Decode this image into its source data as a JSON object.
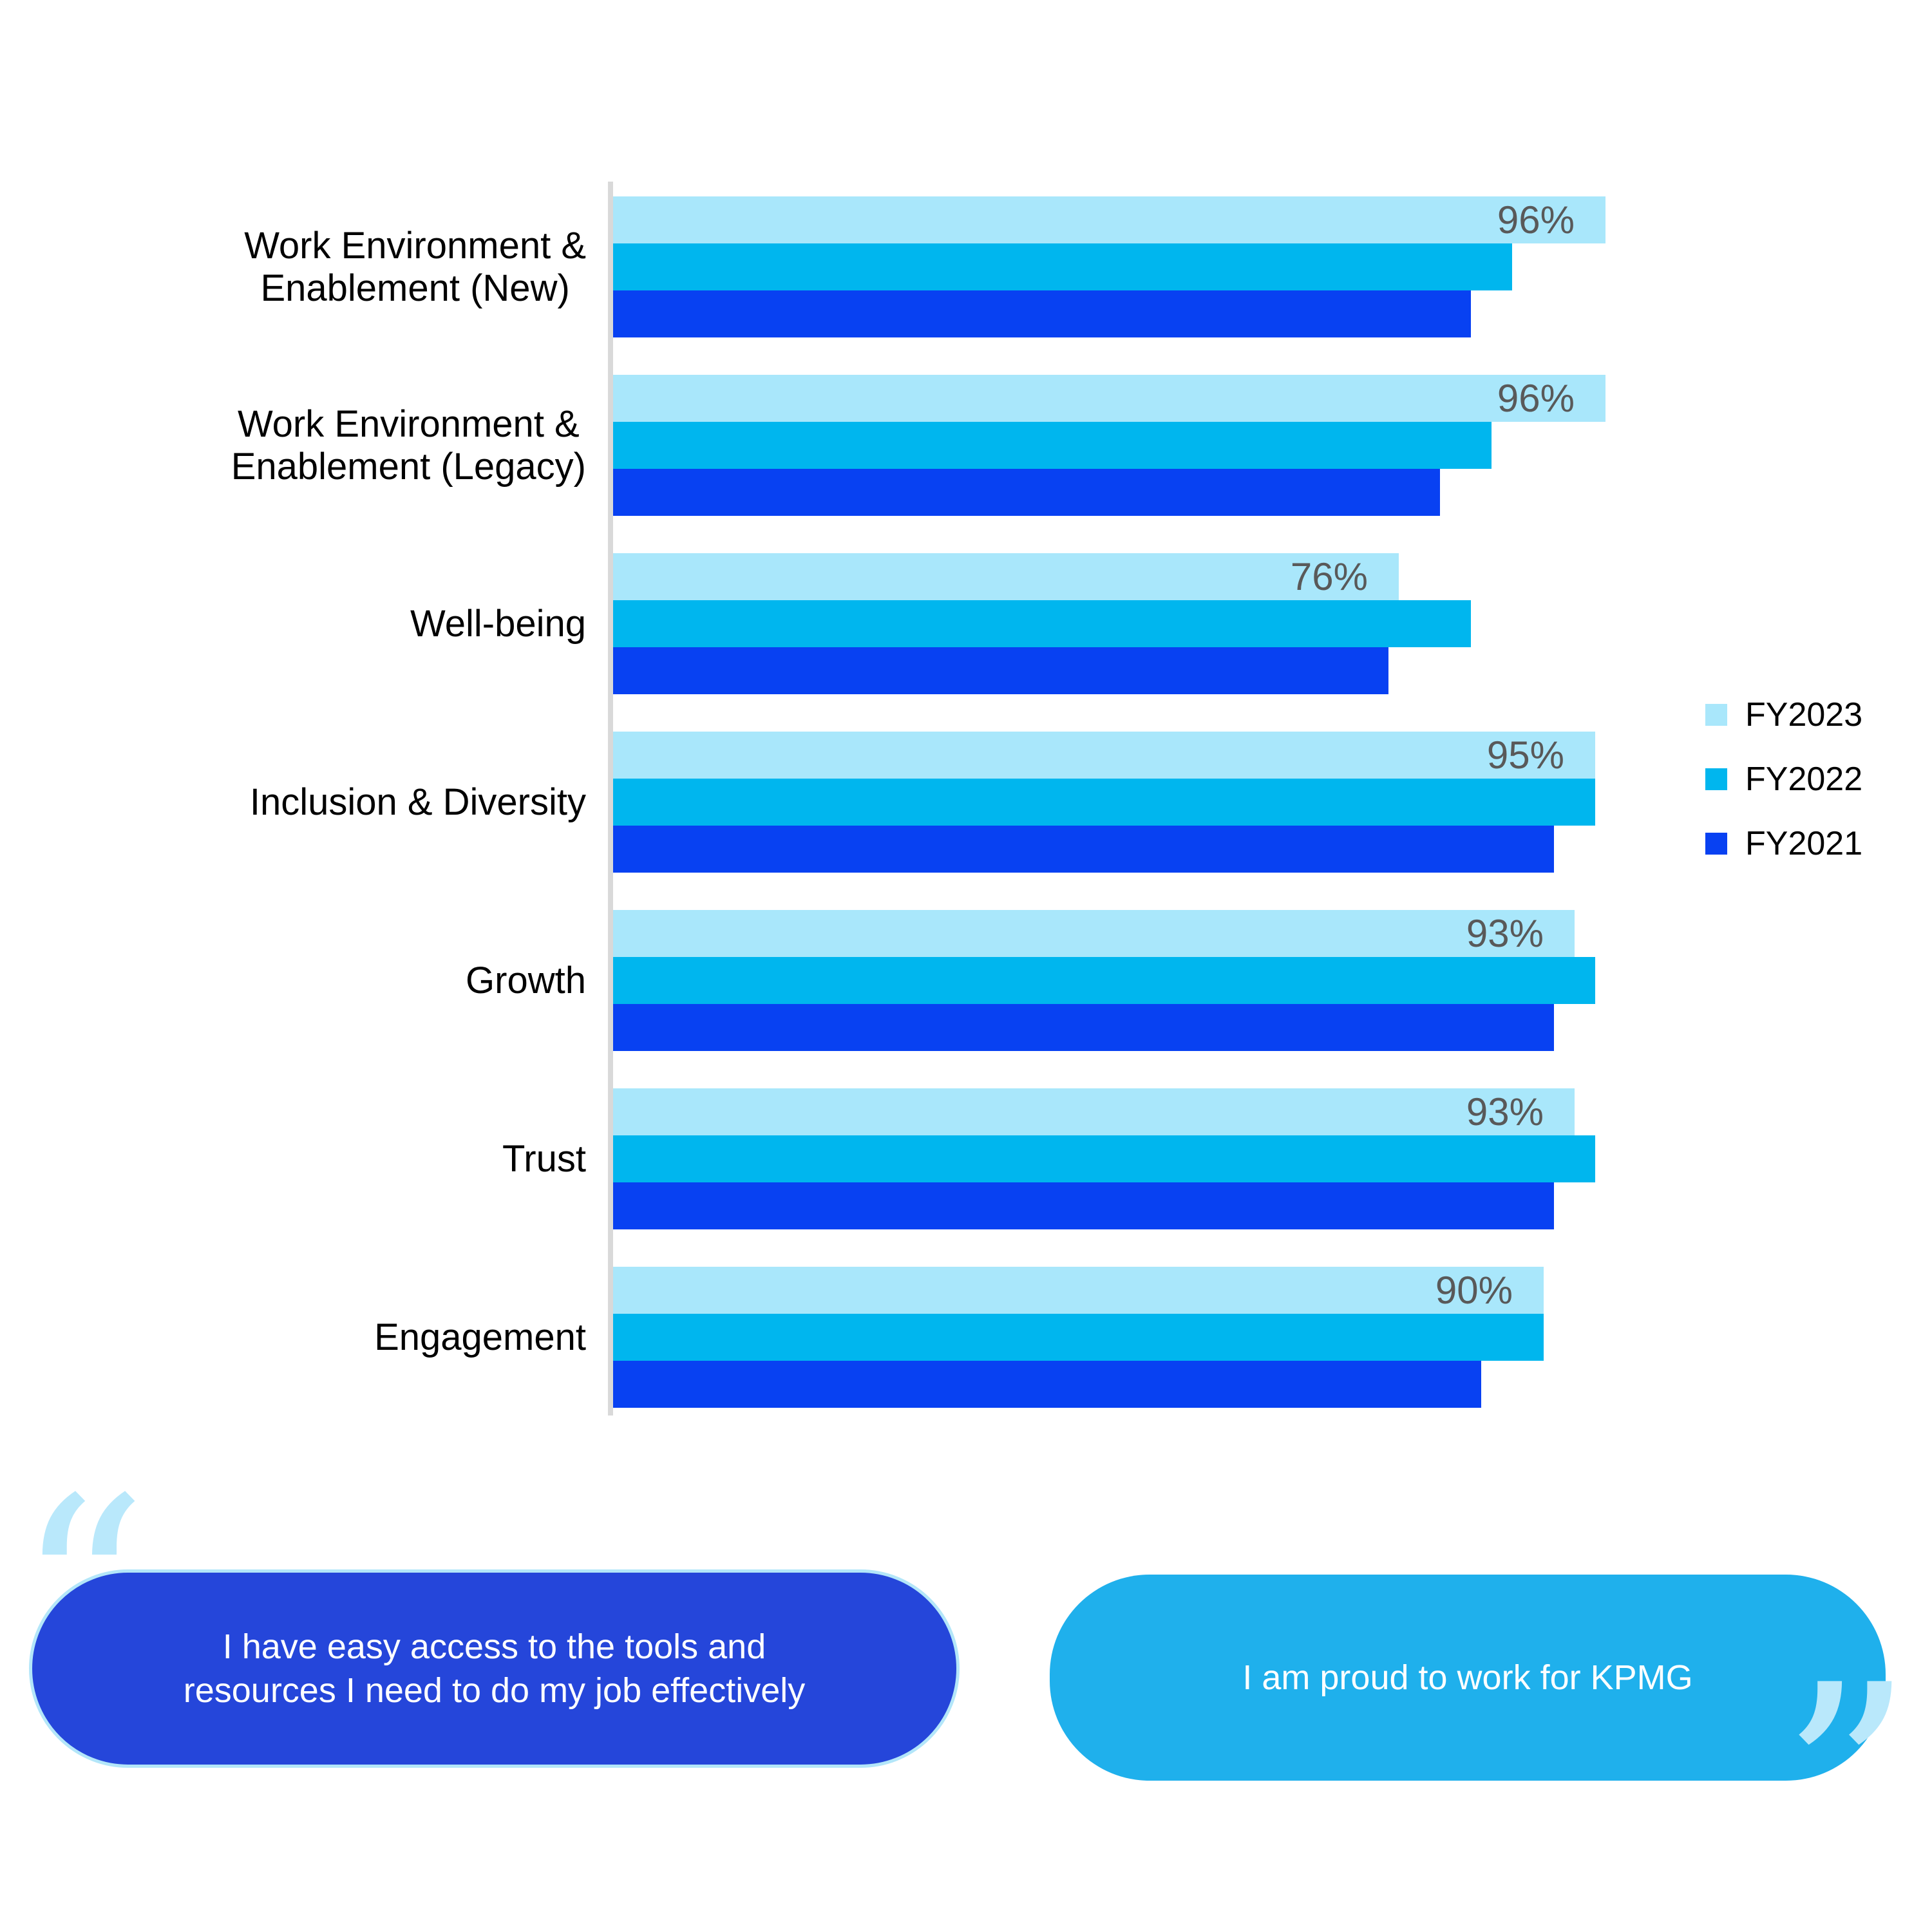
{
  "chart_data": {
    "type": "bar",
    "orientation": "horizontal",
    "title": "",
    "xlabel": "",
    "ylabel": "",
    "xlim": [
      0,
      100
    ],
    "grid": false,
    "legend_position": "right-center",
    "axis_line_color": "#D9D9D9",
    "value_label_color": "#595959",
    "data_labels_on_series": "FY2023",
    "categories": [
      "Work Environment &\nEnablement (New)",
      "Work Environment &\nEnablement (Legacy)",
      "Well-being",
      "Inclusion & Diversity",
      "Growth",
      "Trust",
      "Engagement"
    ],
    "series": [
      {
        "name": "FY2023",
        "color": "#A9E7FB",
        "values": [
          96,
          96,
          76,
          95,
          93,
          93,
          90
        ],
        "data_labels": [
          "96%",
          "96%",
          "76%",
          "95%",
          "93%",
          "93%",
          "90%"
        ]
      },
      {
        "name": "FY2022",
        "color": "#00B6EE",
        "values": [
          87,
          85,
          83,
          95,
          95,
          95,
          90
        ],
        "data_labels": null
      },
      {
        "name": "FY2021",
        "color": "#0841F2",
        "values": [
          83,
          80,
          75,
          91,
          91,
          91,
          84
        ],
        "data_labels": null
      }
    ]
  },
  "quotes": {
    "open_glyph": "“",
    "close_glyph": "”",
    "mark_color": "#B9E8FB",
    "left": {
      "text": "I have easy access to the tools and\nresources I need to do my job effectively",
      "bg": "#2546DA",
      "text_color": "#FFFFFF"
    },
    "right": {
      "text": "I am proud to work for KPMG",
      "bg": "#1FB0EC",
      "text_color": "#FFFFFF"
    }
  }
}
